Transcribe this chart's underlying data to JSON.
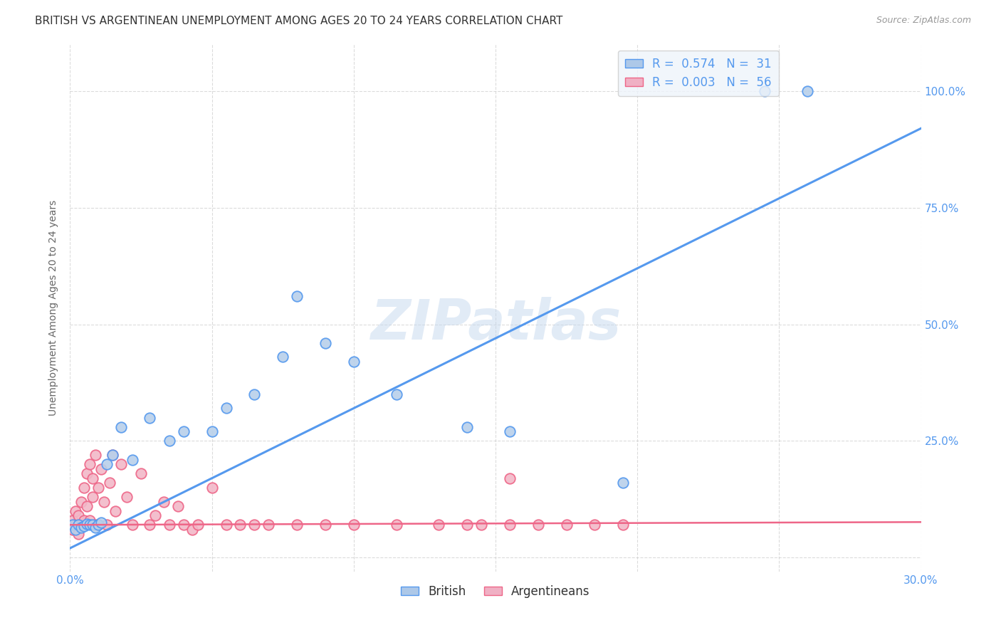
{
  "title": "BRITISH VS ARGENTINEAN UNEMPLOYMENT AMONG AGES 20 TO 24 YEARS CORRELATION CHART",
  "source": "Source: ZipAtlas.com",
  "ylabel": "Unemployment Among Ages 20 to 24 years",
  "xlim": [
    0.0,
    0.3
  ],
  "ylim": [
    -0.03,
    1.1
  ],
  "xtick_positions": [
    0.0,
    0.05,
    0.1,
    0.15,
    0.2,
    0.25,
    0.3
  ],
  "xtick_labels": [
    "0.0%",
    "",
    "",
    "",
    "",
    "",
    "30.0%"
  ],
  "ytick_positions": [
    0.0,
    0.25,
    0.5,
    0.75,
    1.0
  ],
  "ytick_labels": [
    "",
    "25.0%",
    "50.0%",
    "75.0%",
    "100.0%"
  ],
  "british_color": "#b8d0ea",
  "argentinean_color": "#f2b8c8",
  "british_line_color": "#5599ee",
  "argentinean_line_color": "#ee6688",
  "watermark": "ZIPatlas",
  "legend_R_british": "R =  0.574",
  "legend_N_british": "N =  31",
  "legend_R_argentinean": "R =  0.003",
  "legend_N_argentinean": "N =  56",
  "british_color_legend": "#adc8e8",
  "argentinean_color_legend": "#f0b0c4",
  "background_color": "#ffffff",
  "grid_color": "#cccccc",
  "title_color": "#333333",
  "axis_color": "#5599ee",
  "legend_box_color": "#eef4fb",
  "british_x": [
    0.001,
    0.002,
    0.003,
    0.004,
    0.005,
    0.006,
    0.007,
    0.008,
    0.009,
    0.01,
    0.011,
    0.013,
    0.015,
    0.018,
    0.022,
    0.028,
    0.035,
    0.04,
    0.05,
    0.055,
    0.065,
    0.075,
    0.08,
    0.09,
    0.1,
    0.115,
    0.14,
    0.155,
    0.195,
    0.245,
    0.26
  ],
  "british_y": [
    0.07,
    0.06,
    0.07,
    0.065,
    0.068,
    0.072,
    0.07,
    0.07,
    0.065,
    0.07,
    0.075,
    0.2,
    0.22,
    0.28,
    0.21,
    0.3,
    0.25,
    0.27,
    0.27,
    0.32,
    0.35,
    0.43,
    0.56,
    0.46,
    0.42,
    0.35,
    0.28,
    0.27,
    0.16,
    1.0,
    1.0
  ],
  "argentinean_x": [
    0.001,
    0.001,
    0.002,
    0.002,
    0.003,
    0.003,
    0.004,
    0.004,
    0.005,
    0.005,
    0.006,
    0.006,
    0.007,
    0.007,
    0.008,
    0.008,
    0.009,
    0.009,
    0.01,
    0.01,
    0.011,
    0.012,
    0.013,
    0.014,
    0.015,
    0.016,
    0.018,
    0.02,
    0.022,
    0.025,
    0.028,
    0.03,
    0.033,
    0.035,
    0.038,
    0.04,
    0.043,
    0.045,
    0.05,
    0.055,
    0.06,
    0.065,
    0.07,
    0.08,
    0.09,
    0.1,
    0.115,
    0.13,
    0.14,
    0.155,
    0.145,
    0.155,
    0.165,
    0.175,
    0.185,
    0.195
  ],
  "argentinean_y": [
    0.06,
    0.08,
    0.07,
    0.1,
    0.05,
    0.09,
    0.12,
    0.07,
    0.15,
    0.08,
    0.18,
    0.11,
    0.2,
    0.08,
    0.17,
    0.13,
    0.07,
    0.22,
    0.15,
    0.07,
    0.19,
    0.12,
    0.07,
    0.16,
    0.22,
    0.1,
    0.2,
    0.13,
    0.07,
    0.18,
    0.07,
    0.09,
    0.12,
    0.07,
    0.11,
    0.07,
    0.06,
    0.07,
    0.15,
    0.07,
    0.07,
    0.07,
    0.07,
    0.07,
    0.07,
    0.07,
    0.07,
    0.07,
    0.07,
    0.17,
    0.07,
    0.07,
    0.07,
    0.07,
    0.07,
    0.07
  ],
  "marker_size": 110,
  "title_fontsize": 11,
  "tick_fontsize": 11,
  "ylabel_fontsize": 10,
  "legend_fontsize": 12,
  "source_fontsize": 9,
  "watermark_fontsize": 56
}
